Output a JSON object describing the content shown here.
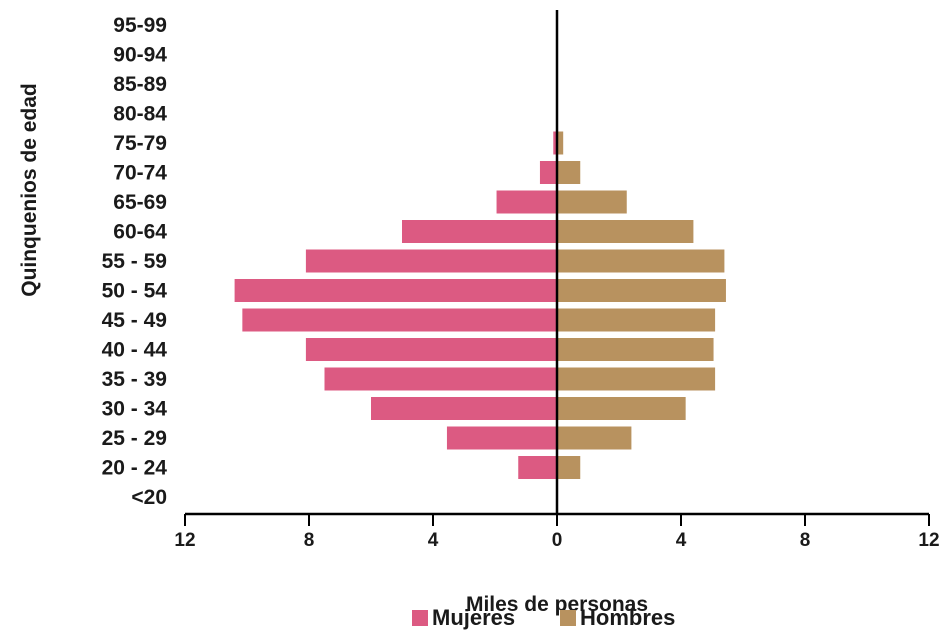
{
  "chart_data": {
    "type": "bar",
    "orientation": "horizontal-population-pyramid",
    "categories": [
      "<20",
      "20 - 24",
      "25 - 29",
      "30 - 34",
      "35 - 39",
      "40 - 44",
      "45 - 49",
      "50 - 54",
      "55 - 59",
      "60-64",
      "65-69",
      "70-74",
      "75-79",
      "80-84",
      "85-89",
      "90-94",
      "95-99"
    ],
    "series": [
      {
        "name": "Mujeres",
        "color": "#dc5a82",
        "side": "left",
        "values": [
          0,
          1.25,
          3.55,
          6.0,
          7.5,
          8.1,
          10.15,
          10.4,
          8.1,
          5.0,
          1.95,
          0.55,
          0.12,
          0,
          0,
          0,
          0
        ]
      },
      {
        "name": "Hombres",
        "color": "#b8925f",
        "side": "right",
        "values": [
          0,
          0.75,
          2.4,
          4.15,
          5.1,
          5.05,
          5.1,
          5.45,
          5.4,
          4.4,
          2.25,
          0.75,
          0.2,
          0,
          0,
          0,
          0
        ]
      }
    ],
    "xticks": [
      "12",
      "8",
      "4",
      "0",
      "4",
      "8",
      "12"
    ],
    "xlim": [
      -12,
      12
    ],
    "xlabel": "Miles de personas",
    "ylabel": "Quinquenios de edad",
    "title": "",
    "grid": false,
    "legend": "bottom"
  }
}
